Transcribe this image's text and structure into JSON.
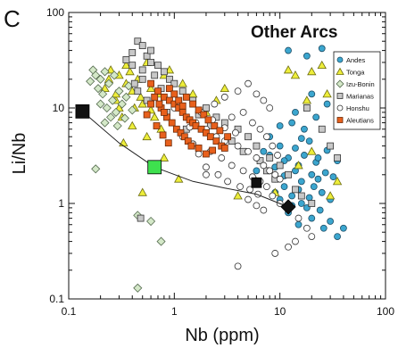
{
  "panel_label": "C",
  "chart_data": {
    "type": "scatter",
    "title": "Other Arcs",
    "xlabel": "Nb (ppm)",
    "ylabel": "Li/Nb",
    "x_scale": "log",
    "y_scale": "log",
    "xlim": [
      0.1,
      100
    ],
    "ylim": [
      0.1,
      100
    ],
    "x_ticks": [
      "0.1",
      "1",
      "10",
      "100"
    ],
    "y_ticks": [
      "0.1",
      "1",
      "10",
      "100"
    ],
    "legend_position": "right",
    "series": [
      {
        "name": "Andes",
        "marker": "circle",
        "fill": "#3ba6cf",
        "stroke": "#1f4e66",
        "points": [
          [
            8,
            5
          ],
          [
            10,
            4
          ],
          [
            12,
            3
          ],
          [
            15,
            2.5
          ],
          [
            20,
            2
          ],
          [
            9,
            1.8
          ],
          [
            11,
            1.5
          ],
          [
            13,
            1.2
          ],
          [
            16,
            1
          ],
          [
            18,
            0.9
          ],
          [
            25,
            1.3
          ],
          [
            30,
            1.1
          ],
          [
            14,
            2.2
          ],
          [
            17,
            3.2
          ],
          [
            22,
            2.7
          ],
          [
            10,
            1.1
          ],
          [
            12,
            0.8
          ],
          [
            20,
            0.7
          ],
          [
            26,
            0.55
          ],
          [
            35,
            0.45
          ],
          [
            11,
            2.8
          ],
          [
            14,
            3.8
          ],
          [
            19,
            4.5
          ],
          [
            23,
            3
          ],
          [
            9,
            2.4
          ],
          [
            8,
            3.2
          ],
          [
            16,
            1.7
          ],
          [
            21,
            1.5
          ],
          [
            27,
            2.1
          ],
          [
            13,
            0.95
          ],
          [
            15,
            0.6
          ],
          [
            24,
            0.85
          ],
          [
            30,
            0.65
          ],
          [
            40,
            0.55
          ],
          [
            12,
            40
          ],
          [
            18,
            35
          ],
          [
            25,
            42
          ],
          [
            20,
            14
          ],
          [
            28,
            11
          ],
          [
            22,
            8
          ],
          [
            13,
            7
          ],
          [
            17,
            6
          ],
          [
            7,
            3.5
          ],
          [
            9,
            1.3
          ],
          [
            11,
            1.95
          ],
          [
            15,
            1.4
          ],
          [
            19,
            1.15
          ],
          [
            23,
            1.8
          ],
          [
            6,
            2.2
          ],
          [
            32,
            1.9
          ],
          [
            35,
            2.8
          ],
          [
            28,
            3.6
          ],
          [
            10,
            6.5
          ],
          [
            14,
            9
          ],
          [
            16,
            4.8
          ]
        ]
      },
      {
        "name": "Tonga",
        "marker": "triangle",
        "fill": "#eded3a",
        "stroke": "#6b6b10",
        "points": [
          [
            0.25,
            25
          ],
          [
            0.3,
            22
          ],
          [
            0.35,
            18
          ],
          [
            0.28,
            12
          ],
          [
            0.4,
            15
          ],
          [
            0.45,
            20
          ],
          [
            0.5,
            11
          ],
          [
            0.55,
            30
          ],
          [
            0.6,
            16
          ],
          [
            0.7,
            14
          ],
          [
            0.9,
            25
          ],
          [
            1.2,
            18
          ],
          [
            0.32,
            8
          ],
          [
            0.4,
            6.5
          ],
          [
            0.55,
            5
          ],
          [
            0.35,
            28
          ],
          [
            0.42,
            10
          ],
          [
            0.65,
            8
          ],
          [
            0.8,
            22
          ],
          [
            1.5,
            14
          ],
          [
            2,
            9
          ],
          [
            0.5,
            1.3
          ],
          [
            0.8,
            3
          ],
          [
            1.1,
            1.8
          ],
          [
            0.28,
            14
          ],
          [
            0.24,
            20
          ],
          [
            0.3,
            10
          ],
          [
            0.22,
            16
          ],
          [
            0.38,
            24
          ],
          [
            2.5,
            12
          ],
          [
            3,
            16
          ],
          [
            0.48,
            13
          ],
          [
            0.6,
            9.5
          ],
          [
            0.75,
            6
          ],
          [
            15,
            2.5
          ],
          [
            20,
            3.5
          ],
          [
            30,
            1.2
          ],
          [
            35,
            1.7
          ],
          [
            9,
            1.3
          ],
          [
            6,
            1.7
          ],
          [
            4,
            1.2
          ],
          [
            25,
            28
          ],
          [
            20,
            24
          ],
          [
            14,
            22
          ],
          [
            12,
            25
          ],
          [
            18,
            12
          ],
          [
            28,
            14
          ],
          [
            0.33,
            4.3
          ]
        ]
      },
      {
        "name": "Izu-Bonin",
        "marker": "diamond",
        "fill": "#d4e8c8",
        "stroke": "#556b4f",
        "points": [
          [
            0.17,
            25
          ],
          [
            0.18,
            22
          ],
          [
            0.2,
            20
          ],
          [
            0.22,
            24
          ],
          [
            0.19,
            16
          ],
          [
            0.24,
            18
          ],
          [
            0.21,
            14
          ],
          [
            0.26,
            12
          ],
          [
            0.23,
            10
          ],
          [
            0.28,
            9
          ],
          [
            0.3,
            15
          ],
          [
            0.32,
            11
          ],
          [
            0.27,
            22
          ],
          [
            0.35,
            13
          ],
          [
            0.18,
            2.3
          ],
          [
            0.45,
            0.75
          ],
          [
            0.6,
            0.65
          ],
          [
            0.45,
            0.13
          ],
          [
            0.25,
            8
          ],
          [
            0.29,
            6.5
          ],
          [
            0.34,
            7.8
          ],
          [
            0.2,
            11
          ],
          [
            0.16,
            19
          ],
          [
            0.4,
            9.5
          ],
          [
            0.37,
            17
          ],
          [
            0.22,
            7
          ],
          [
            0.75,
            0.4
          ]
        ]
      },
      {
        "name": "Marianas",
        "marker": "square",
        "fill": "#c8c8c8",
        "stroke": "#333333",
        "points": [
          [
            0.45,
            50
          ],
          [
            0.5,
            45
          ],
          [
            0.4,
            38
          ],
          [
            0.55,
            35
          ],
          [
            0.6,
            30
          ],
          [
            0.7,
            28
          ],
          [
            0.8,
            24
          ],
          [
            0.9,
            20
          ],
          [
            1,
            18
          ],
          [
            0.5,
            25
          ],
          [
            0.65,
            22
          ],
          [
            0.75,
            16
          ],
          [
            1.2,
            15
          ],
          [
            1.5,
            12
          ],
          [
            2,
            10
          ],
          [
            0.5,
            20
          ],
          [
            0.45,
            15
          ],
          [
            1.3,
            6
          ],
          [
            2.5,
            8
          ],
          [
            3,
            7
          ],
          [
            4,
            6
          ],
          [
            5,
            5
          ],
          [
            6,
            4
          ],
          [
            8,
            3
          ],
          [
            10,
            2.5
          ],
          [
            12,
            2
          ],
          [
            0.55,
            12
          ],
          [
            0.85,
            9
          ],
          [
            1.1,
            11
          ],
          [
            1.7,
            8.5
          ],
          [
            2.2,
            6.5
          ],
          [
            3.5,
            4.5
          ],
          [
            4.5,
            3.5
          ],
          [
            6.5,
            2.8
          ],
          [
            7.5,
            2.2
          ],
          [
            9,
            1.8
          ],
          [
            14,
            1.4
          ],
          [
            16,
            1.2
          ],
          [
            20,
            1
          ],
          [
            0.4,
            28
          ],
          [
            0.35,
            32
          ],
          [
            0.6,
            40
          ],
          [
            18,
            10
          ],
          [
            25,
            6
          ],
          [
            30,
            4
          ],
          [
            35,
            3
          ],
          [
            0.48,
            0.7
          ],
          [
            0.42,
            18
          ]
        ]
      },
      {
        "name": "Honshu",
        "marker": "circle",
        "fill": "#ffffff",
        "stroke": "#333333",
        "points": [
          [
            1,
            10
          ],
          [
            1.3,
            8
          ],
          [
            1.6,
            7
          ],
          [
            2,
            6
          ],
          [
            2.5,
            5
          ],
          [
            3,
            4.5
          ],
          [
            4,
            4
          ],
          [
            5,
            3.5
          ],
          [
            6,
            3
          ],
          [
            7,
            2.5
          ],
          [
            8,
            2.2
          ],
          [
            9,
            2
          ],
          [
            10,
            1.8
          ],
          [
            1.2,
            5
          ],
          [
            1.5,
            4.2
          ],
          [
            2.2,
            3.5
          ],
          [
            2.8,
            3
          ],
          [
            3.5,
            2.5
          ],
          [
            4.5,
            2.2
          ],
          [
            5.5,
            1.9
          ],
          [
            6.5,
            1.7
          ],
          [
            7.5,
            1.5
          ],
          [
            1.8,
            9
          ],
          [
            2.4,
            11
          ],
          [
            3,
            13
          ],
          [
            4,
            15
          ],
          [
            5,
            18
          ],
          [
            6,
            14
          ],
          [
            7,
            12
          ],
          [
            8,
            10
          ],
          [
            2,
            2.4
          ],
          [
            2.6,
            2
          ],
          [
            3.2,
            1.7
          ],
          [
            4.2,
            1.5
          ],
          [
            5.2,
            1.4
          ],
          [
            6.2,
            1.25
          ],
          [
            8.5,
            1.2
          ],
          [
            10,
            1
          ],
          [
            12,
            0.9
          ],
          [
            15,
            0.7
          ],
          [
            18,
            0.55
          ],
          [
            20,
            0.45
          ],
          [
            4,
            0.22
          ],
          [
            9,
            0.3
          ],
          [
            14,
            0.4
          ],
          [
            12,
            0.35
          ],
          [
            3.5,
            8
          ],
          [
            4.5,
            9
          ],
          [
            5.5,
            7
          ],
          [
            6.5,
            6
          ],
          [
            7.5,
            5
          ],
          [
            8.5,
            4
          ],
          [
            9.5,
            3.2
          ],
          [
            2.3,
            7.5
          ],
          [
            3,
            6.2
          ],
          [
            3.8,
            5.5
          ],
          [
            1.4,
            6.3
          ],
          [
            1.7,
            3.3
          ],
          [
            2,
            2
          ],
          [
            5,
            1.1
          ],
          [
            6,
            0.95
          ],
          [
            7,
            0.85
          ]
        ]
      },
      {
        "name": "Aleutians",
        "marker": "square",
        "fill": "#e8601c",
        "stroke": "#6b2a08",
        "points": [
          [
            0.6,
            18
          ],
          [
            0.7,
            15
          ],
          [
            0.8,
            13
          ],
          [
            0.9,
            12
          ],
          [
            1,
            11
          ],
          [
            1.1,
            10
          ],
          [
            1.2,
            9
          ],
          [
            1.3,
            8
          ],
          [
            1.4,
            7.5
          ],
          [
            1.5,
            7
          ],
          [
            1.6,
            6.5
          ],
          [
            1.8,
            6
          ],
          [
            2,
            5.5
          ],
          [
            2.2,
            5
          ],
          [
            2.5,
            4.5
          ],
          [
            2.8,
            4
          ],
          [
            3,
            3.8
          ],
          [
            0.75,
            10
          ],
          [
            0.85,
            8
          ],
          [
            0.95,
            7
          ],
          [
            1.05,
            6
          ],
          [
            1.15,
            5.5
          ],
          [
            1.25,
            5
          ],
          [
            1.35,
            4.5
          ],
          [
            1.45,
            4
          ],
          [
            0.65,
            13
          ],
          [
            0.72,
            11
          ],
          [
            0.8,
            9
          ],
          [
            0.9,
            16
          ],
          [
            1,
            14
          ],
          [
            1.1,
            12
          ],
          [
            1.2,
            10.5
          ],
          [
            1.3,
            13
          ],
          [
            1.5,
            11
          ],
          [
            1.7,
            9.5
          ],
          [
            1.9,
            8.5
          ],
          [
            2.1,
            7.5
          ],
          [
            2.4,
            6.5
          ],
          [
            2.7,
            5.8
          ],
          [
            3.2,
            5
          ],
          [
            0.68,
            6.5
          ],
          [
            0.78,
            5.2
          ],
          [
            0.88,
            4.3
          ],
          [
            1.7,
            3.8
          ],
          [
            2,
            3.3
          ],
          [
            2.3,
            3.6
          ],
          [
            0.55,
            8.5
          ],
          [
            0.6,
            11
          ]
        ]
      }
    ],
    "reference_curve": {
      "label": "",
      "points": [
        [
          0.135,
          9.2
        ],
        [
          0.3,
          4.3
        ],
        [
          0.65,
          2.4
        ],
        [
          1.5,
          1.7
        ],
        [
          3,
          1.45
        ],
        [
          6,
          1.25
        ],
        [
          12,
          0.92
        ]
      ]
    },
    "reference_markers": [
      {
        "marker": "square",
        "fill": "#111111",
        "stroke": "#000000",
        "x": 0.135,
        "y": 9.2,
        "size": 15
      },
      {
        "marker": "square",
        "fill": "#3ee04e",
        "stroke": "#000000",
        "x": 0.65,
        "y": 2.4,
        "size": 15
      },
      {
        "marker": "square",
        "fill": "#111111",
        "stroke": "#000000",
        "x": 6,
        "y": 1.65,
        "size": 11
      },
      {
        "marker": "diamond",
        "fill": "#111111",
        "stroke": "#000000",
        "x": 12,
        "y": 0.92,
        "size": 14
      }
    ]
  }
}
